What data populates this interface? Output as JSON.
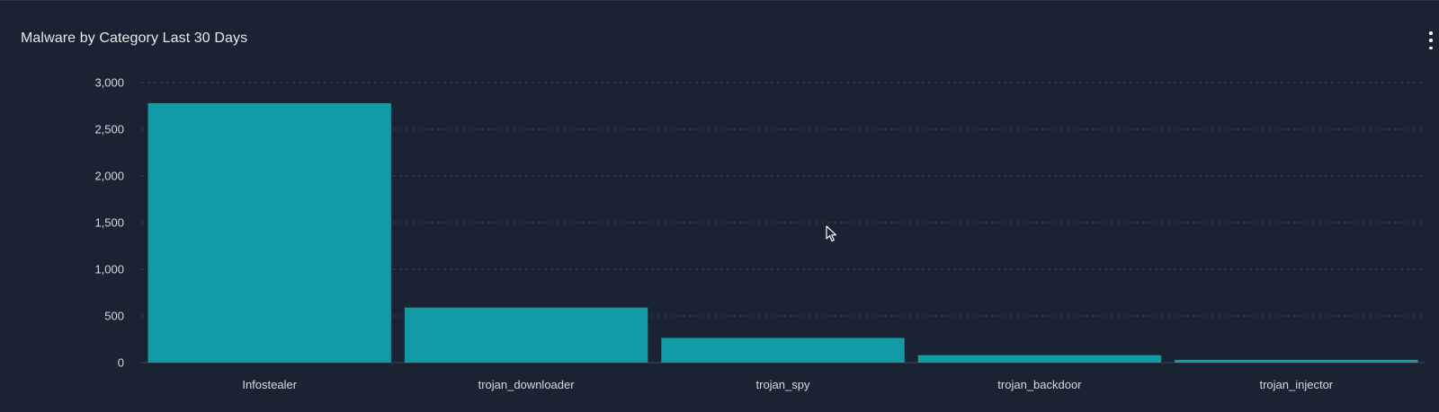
{
  "panel": {
    "title": "Malware by Category Last 30 Days",
    "menu_icon": "vertical-ellipsis-icon"
  },
  "colors": {
    "background": "#1a2332",
    "bar": "#129ba7",
    "grid": "#3a4556",
    "text": "#d6dae1"
  },
  "chart_data": {
    "type": "bar",
    "categories": [
      "Infostealer",
      "trojan_downloader",
      "trojan_spy",
      "trojan_backdoor",
      "trojan_injector"
    ],
    "values": [
      2780,
      590,
      265,
      80,
      30
    ],
    "title": "Malware by Category Last 30 Days",
    "xlabel": "",
    "ylabel": "",
    "ylim": [
      0,
      3000
    ],
    "yticks": [
      0,
      500,
      1000,
      1500,
      2000,
      2500,
      3000
    ],
    "ytick_labels": [
      "0",
      "500",
      "1,000",
      "1,500",
      "2,000",
      "2,500",
      "3,000"
    ],
    "grid": true,
    "legend": "none"
  }
}
